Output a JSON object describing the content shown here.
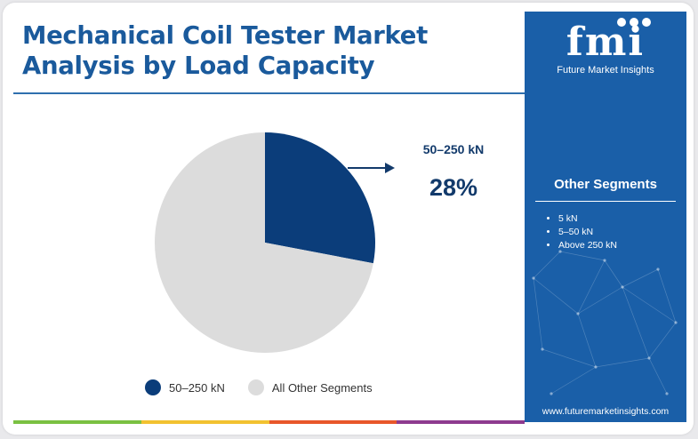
{
  "title": "Mechanical Coil Tester Market Analysis by Load Capacity",
  "chart_data": {
    "type": "pie",
    "slices": [
      {
        "label": "50–250 kN",
        "value": 28,
        "color": "#0b3d7a"
      },
      {
        "label": "All Other Segments",
        "value": 72,
        "color": "#dcdcdc"
      }
    ],
    "legend_position": "bottom"
  },
  "callout": {
    "label": "50–250 kN",
    "value": "28%"
  },
  "legend": [
    {
      "label": "50–250 kN",
      "color": "#0b3d7a"
    },
    {
      "label": "All Other Segments",
      "color": "#dcdcdc"
    }
  ],
  "brand": {
    "logo_text": "fmi",
    "tagline": "Future Market Insights"
  },
  "sidebar": {
    "heading": "Other Segments",
    "items": [
      "5 kN",
      "5–50 kN",
      "Above 250 kN"
    ],
    "website": "www.futuremarketinsights.com"
  },
  "colors": {
    "panel": "#1a5fa8",
    "title": "#1a5a9c",
    "accent_bar": [
      "#7ac142",
      "#f2c230",
      "#e8572a",
      "#8e3b8f"
    ]
  }
}
